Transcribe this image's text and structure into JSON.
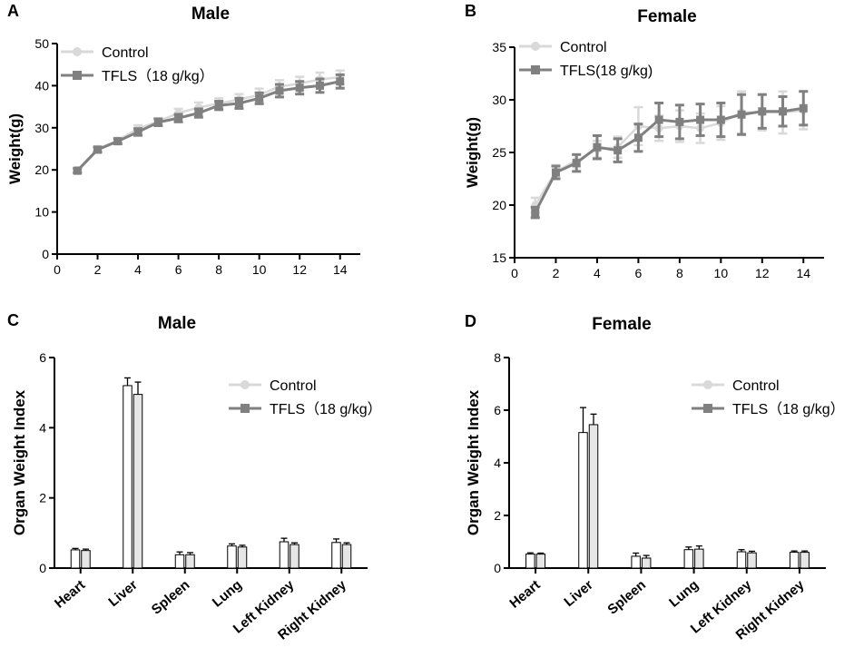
{
  "chart_data": [
    {
      "type": "line",
      "panel_letter": "A",
      "title": "Male",
      "xlabel": "",
      "ylabel": "Weight(g)",
      "xlim": [
        0,
        15
      ],
      "xticks": [
        0,
        2,
        4,
        6,
        8,
        10,
        12,
        14
      ],
      "ylim": [
        0,
        50
      ],
      "yticks": [
        0,
        10,
        20,
        30,
        40,
        50
      ],
      "x": [
        1,
        2,
        3,
        4,
        5,
        6,
        7,
        8,
        9,
        10,
        11,
        12,
        13,
        14
      ],
      "legend_position": "top-left",
      "series": [
        {
          "name": "Control",
          "marker": "circle",
          "color": "#d9d9d9",
          "values": [
            20,
            25,
            27,
            29.8,
            31.5,
            33.5,
            34.8,
            35.8,
            36.7,
            37.8,
            39.8,
            40.5,
            41.5,
            42
          ],
          "errors": [
            0.5,
            0.6,
            0.6,
            0.8,
            0.8,
            1.0,
            1.2,
            1.2,
            1.3,
            1.5,
            1.5,
            1.6,
            1.6,
            1.6
          ]
        },
        {
          "name": "TFLS（18 g/kg）",
          "marker": "square",
          "color": "#808080",
          "values": [
            19.8,
            24.8,
            26.8,
            29,
            31.3,
            32.3,
            33.5,
            35.3,
            35.8,
            37,
            38.8,
            39.5,
            40,
            41
          ],
          "errors": [
            0.5,
            0.6,
            0.6,
            0.8,
            0.8,
            0.9,
            1.0,
            1.0,
            1.2,
            1.3,
            1.5,
            1.5,
            1.6,
            1.6
          ]
        }
      ]
    },
    {
      "type": "line",
      "panel_letter": "B",
      "title": "Female",
      "xlabel": "",
      "ylabel": "Weight(g)",
      "xlim": [
        0,
        15
      ],
      "xticks": [
        0,
        2,
        4,
        6,
        8,
        10,
        12,
        14
      ],
      "ylim": [
        15,
        35
      ],
      "yticks": [
        15,
        20,
        25,
        30,
        35
      ],
      "x": [
        1,
        2,
        3,
        4,
        5,
        6,
        7,
        8,
        9,
        10,
        11,
        12,
        13,
        14
      ],
      "legend_position": "top-left",
      "series": [
        {
          "name": "Control",
          "marker": "circle",
          "color": "#d9d9d9",
          "values": [
            20,
            23.2,
            24.2,
            25.3,
            25.5,
            27.5,
            27.3,
            27.5,
            27.3,
            27.8,
            28.8,
            28.8,
            28.8,
            29
          ],
          "errors": [
            0.7,
            0.6,
            0.6,
            0.8,
            1.0,
            1.8,
            1.2,
            1.5,
            1.4,
            1.6,
            2.0,
            1.7,
            2.0,
            1.8
          ]
        },
        {
          "name": "TFLS(18 g/kg)",
          "marker": "square",
          "color": "#808080",
          "values": [
            19.3,
            23.1,
            24,
            25.5,
            25.2,
            26.4,
            28.1,
            27.9,
            28.1,
            28.1,
            28.6,
            28.9,
            28.9,
            29.2
          ],
          "errors": [
            0.5,
            0.6,
            0.8,
            1.1,
            1.1,
            1.3,
            1.6,
            1.6,
            1.5,
            1.6,
            1.9,
            1.6,
            1.4,
            1.6
          ]
        }
      ]
    },
    {
      "type": "bar",
      "panel_letter": "C",
      "title": "Male",
      "xlabel": "",
      "ylabel": "Organ Weight Index",
      "ylim": [
        0,
        6
      ],
      "yticks": [
        0,
        2,
        4,
        6
      ],
      "categories": [
        "Heart",
        "Liver",
        "Spleen",
        "Lung",
        "Left Kidney",
        "Right Kidney"
      ],
      "legend_position": "top-right",
      "series": [
        {
          "name": "Control",
          "marker": "circle",
          "color": "#d9d9d9",
          "fill": "#ffffff",
          "values": [
            0.52,
            5.2,
            0.38,
            0.63,
            0.75,
            0.73
          ],
          "errors": [
            0.04,
            0.22,
            0.08,
            0.06,
            0.1,
            0.1
          ]
        },
        {
          "name": "TFLS（18 g/kg）",
          "marker": "square",
          "color": "#808080",
          "fill": "#e6e6e6",
          "values": [
            0.5,
            4.95,
            0.38,
            0.6,
            0.67,
            0.67
          ],
          "errors": [
            0.04,
            0.35,
            0.06,
            0.05,
            0.05,
            0.05
          ]
        }
      ]
    },
    {
      "type": "bar",
      "panel_letter": "D",
      "title": "Female",
      "xlabel": "",
      "ylabel": "Organ Weight Index",
      "ylim": [
        0,
        8
      ],
      "yticks": [
        0,
        2,
        4,
        6,
        8
      ],
      "categories": [
        "Heart",
        "Liver",
        "Spleen",
        "Lung",
        "Left Kidney",
        "Right Kidney"
      ],
      "legend_position": "top-right",
      "series": [
        {
          "name": "Control",
          "marker": "circle",
          "color": "#d9d9d9",
          "fill": "#ffffff",
          "values": [
            0.53,
            5.15,
            0.45,
            0.7,
            0.62,
            0.6
          ],
          "errors": [
            0.05,
            0.95,
            0.12,
            0.1,
            0.08,
            0.05
          ]
        },
        {
          "name": "TFLS（18 g/kg）",
          "marker": "square",
          "color": "#808080",
          "fill": "#e6e6e6",
          "values": [
            0.53,
            5.45,
            0.38,
            0.72,
            0.58,
            0.6
          ],
          "errors": [
            0.04,
            0.4,
            0.1,
            0.12,
            0.06,
            0.05
          ]
        }
      ]
    }
  ]
}
